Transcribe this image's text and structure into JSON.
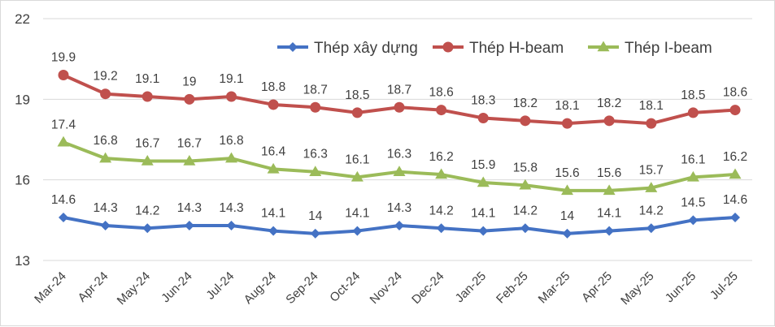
{
  "chart_data": {
    "type": "line",
    "title": "",
    "xlabel": "",
    "ylabel": "",
    "ylim": [
      13,
      22
    ],
    "yticks": [
      13,
      16,
      19,
      22
    ],
    "grid": "horizontal",
    "legend_position": "top-right",
    "categories": [
      "Mar-24",
      "Apr-24",
      "May-24",
      "Jun-24",
      "Jul-24",
      "Aug-24",
      "Sep-24",
      "Oct-24",
      "Nov-24",
      "Dec-24",
      "Jan-25",
      "Feb-25",
      "Mar-25",
      "Apr-25",
      "May-25",
      "Jun-25",
      "Jul-25"
    ],
    "series": [
      {
        "name": "Thép xây dựng",
        "color": "#4472c4",
        "marker": "diamond",
        "values": [
          14.6,
          14.3,
          14.2,
          14.3,
          14.3,
          14.1,
          14,
          14.1,
          14.3,
          14.2,
          14.1,
          14.2,
          14,
          14.1,
          14.2,
          14.5,
          14.6
        ]
      },
      {
        "name": "Thép H-beam",
        "color": "#c0504d",
        "marker": "circle",
        "values": [
          19.9,
          19.2,
          19.1,
          19,
          19.1,
          18.8,
          18.7,
          18.5,
          18.7,
          18.6,
          18.3,
          18.2,
          18.1,
          18.2,
          18.1,
          18.5,
          18.6
        ]
      },
      {
        "name": "Thép I-beam",
        "color": "#9bbb59",
        "marker": "triangle",
        "values": [
          17.4,
          16.8,
          16.7,
          16.7,
          16.8,
          16.4,
          16.3,
          16.1,
          16.3,
          16.2,
          15.9,
          15.8,
          15.6,
          15.6,
          15.7,
          16.1,
          16.2
        ]
      }
    ]
  }
}
